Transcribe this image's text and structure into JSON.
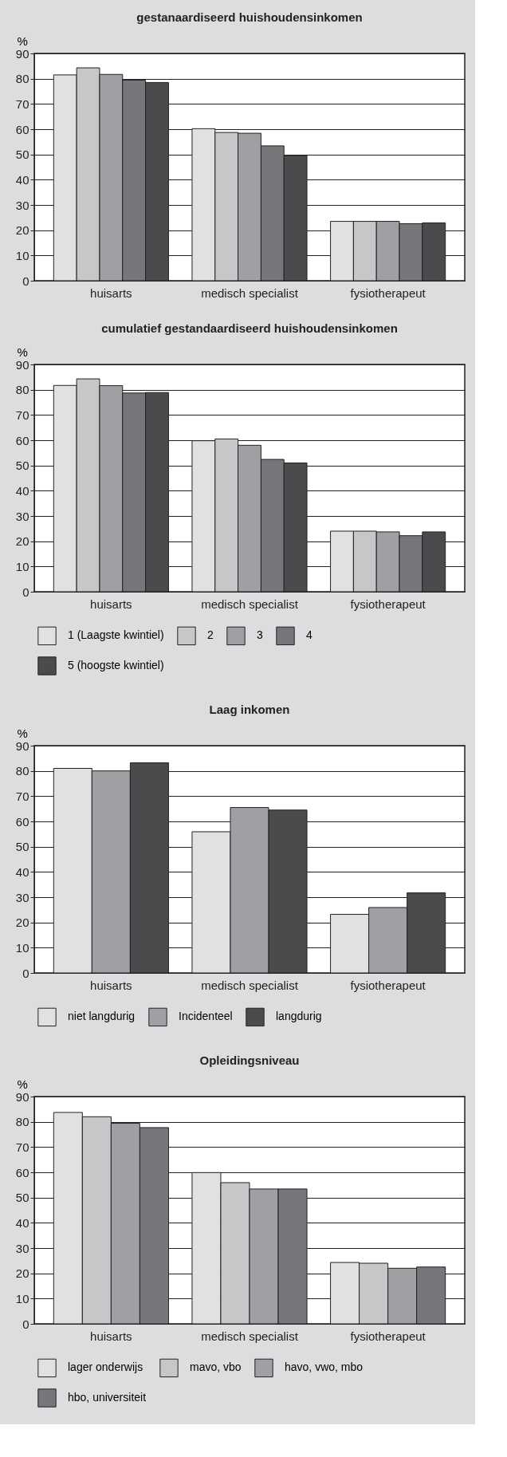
{
  "chart_data": [
    {
      "type": "bar",
      "title": "gestanaardiseerd huishoudensinkomen",
      "ylabel": "%",
      "categories": [
        "huisarts",
        "medisch specialist",
        "fysiotherapeut"
      ],
      "ylim": [
        0,
        90
      ],
      "yticks": [
        0,
        10,
        20,
        30,
        40,
        50,
        60,
        70,
        80,
        90
      ],
      "grid": "y",
      "series": [
        {
          "color": "#e0e1e3",
          "values": [
            81.5,
            60.2,
            23.5
          ]
        },
        {
          "color": "#c6c7c9",
          "values": [
            84.3,
            58.7,
            23.5
          ]
        },
        {
          "color": "#9fa0a4",
          "values": [
            81.7,
            58.4,
            23.5
          ]
        },
        {
          "color": "#76777b",
          "values": [
            79.4,
            53.4,
            22.6
          ]
        },
        {
          "color": "#4a4b4d",
          "values": [
            78.5,
            49.6,
            22.9
          ]
        }
      ]
    },
    {
      "type": "bar",
      "title": "cumulatief gestandaardiseerd huishoudensinkomen",
      "ylabel": "%",
      "categories": [
        "huisarts",
        "medisch specialist",
        "fysiotherapeut"
      ],
      "ylim": [
        0,
        90
      ],
      "yticks": [
        0,
        10,
        20,
        30,
        40,
        50,
        60,
        70,
        80,
        90
      ],
      "grid": "y",
      "legend": "bottom",
      "series": [
        {
          "name": "1 (Laagste kwintiel)",
          "color": "#e0e1e3",
          "values": [
            81.7,
            59.8,
            24.0
          ]
        },
        {
          "name": "2",
          "color": "#c6c7c9",
          "values": [
            84.3,
            60.5,
            24.0
          ]
        },
        {
          "name": "3",
          "color": "#9fa0a4",
          "values": [
            81.6,
            58.0,
            23.7
          ]
        },
        {
          "name": "4",
          "color": "#76777b",
          "values": [
            78.7,
            52.4,
            22.2
          ]
        },
        {
          "name": "5 (hoogste kwintiel)",
          "color": "#4a4b4d",
          "values": [
            78.9,
            51.0,
            23.7
          ]
        }
      ]
    },
    {
      "type": "bar",
      "title": "Laag inkomen",
      "ylabel": "%",
      "categories": [
        "huisarts",
        "medisch specialist",
        "fysiotherapeut"
      ],
      "ylim": [
        0,
        90
      ],
      "yticks": [
        0,
        10,
        20,
        30,
        40,
        50,
        60,
        70,
        80,
        90
      ],
      "grid": "y",
      "legend": "bottom",
      "series": [
        {
          "name": "niet langdurig",
          "color": "#e0e1e3",
          "values": [
            81.0,
            55.9,
            23.2
          ]
        },
        {
          "name": "Incidenteel",
          "color": "#9fa0a4",
          "values": [
            80.0,
            65.5,
            25.9
          ]
        },
        {
          "name": "langdurig",
          "color": "#4a4b4d",
          "values": [
            83.2,
            64.5,
            31.7
          ]
        }
      ]
    },
    {
      "type": "bar",
      "title": "Opleidingsniveau",
      "ylabel": "%",
      "categories": [
        "huisarts",
        "medisch specialist",
        "fysiotherapeut"
      ],
      "ylim": [
        0,
        90
      ],
      "yticks": [
        0,
        10,
        20,
        30,
        40,
        50,
        60,
        70,
        80,
        90
      ],
      "grid": "y",
      "legend": "bottom",
      "series": [
        {
          "name": "lager onderwijs",
          "color": "#e0e1e3",
          "values": [
            83.7,
            59.9,
            24.3
          ]
        },
        {
          "name": "mavo, vbo",
          "color": "#c6c7c9",
          "values": [
            82.0,
            55.9,
            24.0
          ]
        },
        {
          "name": "havo, vwo, mbo",
          "color": "#9fa0a4",
          "values": [
            79.4,
            53.4,
            22.0
          ]
        },
        {
          "name": "hbo, universiteit",
          "color": "#76777b",
          "values": [
            77.7,
            53.4,
            22.5
          ]
        }
      ]
    }
  ]
}
